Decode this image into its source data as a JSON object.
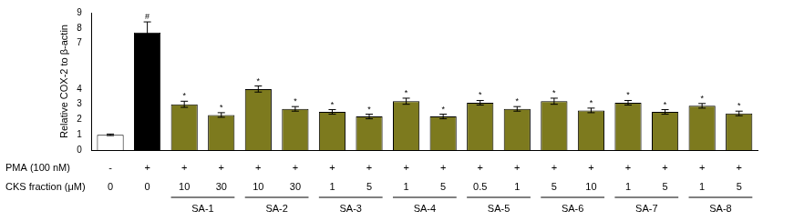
{
  "chart_data": {
    "type": "bar",
    "y_label": "Relative COX-2 to β-actin",
    "row_labels": [
      "PMA (100 nM)",
      "CKS fraction (μM)"
    ],
    "pma": [
      "-",
      "+",
      "+",
      "+",
      "+",
      "+",
      "+",
      "+",
      "+",
      "+",
      "+",
      "+",
      "+",
      "+",
      "+",
      "+",
      "+",
      "+"
    ],
    "categories": [
      "0",
      "0",
      "10",
      "30",
      "10",
      "30",
      "1",
      "5",
      "1",
      "5",
      "0.5",
      "1",
      "5",
      "10",
      "1",
      "5",
      "1",
      "5"
    ],
    "group": [
      null,
      null,
      "SA-1",
      "SA-1",
      "SA-2",
      "SA-2",
      "SA-3",
      "SA-3",
      "SA-4",
      "SA-4",
      "SA-5",
      "SA-5",
      "SA-6",
      "SA-6",
      "SA-7",
      "SA-7",
      "SA-8",
      "SA-8"
    ],
    "values": [
      1.0,
      7.7,
      3.0,
      2.3,
      4.0,
      2.7,
      2.5,
      2.2,
      3.2,
      2.2,
      3.1,
      2.7,
      3.2,
      2.6,
      3.1,
      2.5,
      2.9,
      2.4
    ],
    "errors": [
      0.05,
      0.7,
      0.2,
      0.15,
      0.2,
      0.15,
      0.15,
      0.15,
      0.2,
      0.15,
      0.15,
      0.15,
      0.2,
      0.15,
      0.15,
      0.15,
      0.15,
      0.15
    ],
    "significance": [
      null,
      "#",
      "*",
      "*",
      "*",
      "*",
      "*",
      "*",
      "*",
      "*",
      "*",
      "*",
      "*",
      "*",
      "*",
      "*",
      "*",
      "*"
    ],
    "colors": [
      "#ffffff",
      "#000000",
      "#7d7a1e",
      "#7d7a1e",
      "#7d7a1e",
      "#7d7a1e",
      "#7d7a1e",
      "#7d7a1e",
      "#7d7a1e",
      "#7d7a1e",
      "#7d7a1e",
      "#7d7a1e",
      "#7d7a1e",
      "#7d7a1e",
      "#7d7a1e",
      "#7d7a1e",
      "#7d7a1e",
      "#7d7a1e"
    ],
    "ylim": [
      0,
      9
    ],
    "yticks": [
      0,
      1,
      2,
      3,
      4,
      7,
      8,
      9
    ],
    "grid": false,
    "tick_labels": "y"
  }
}
